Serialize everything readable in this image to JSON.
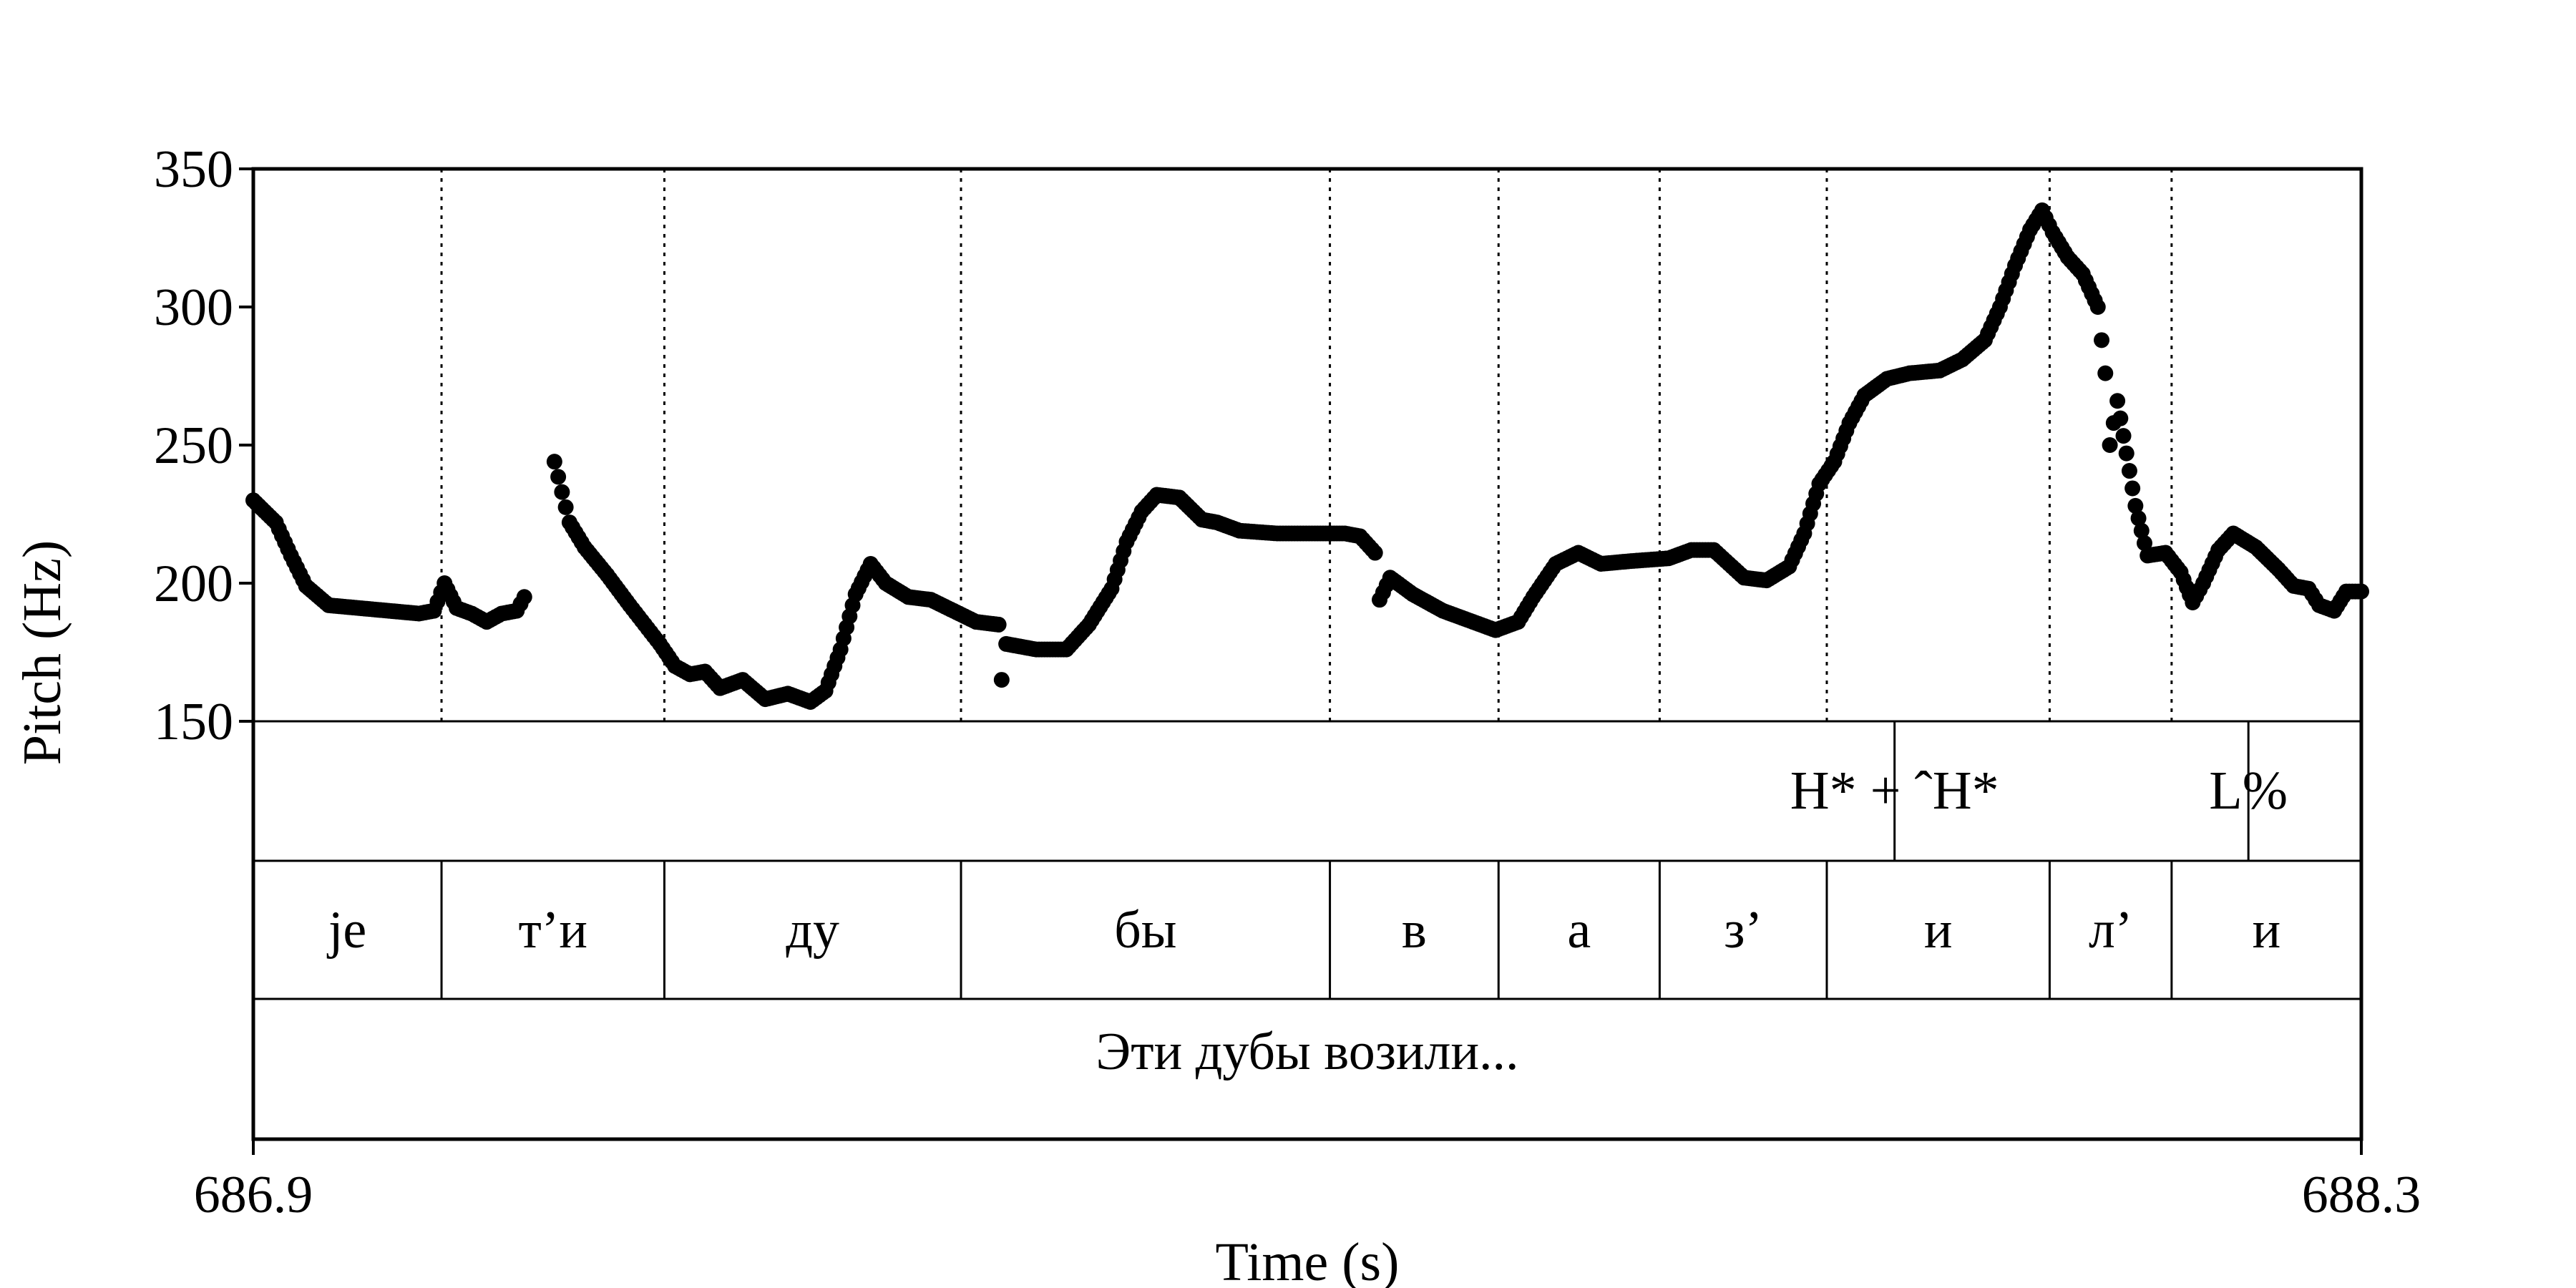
{
  "chart_data": {
    "type": "scatter",
    "xlabel": "Time (s)",
    "ylabel": "Pitch (Hz)",
    "xlim": [
      686.9,
      688.3
    ],
    "ylim": [
      150,
      350
    ],
    "x_tick_labels": [
      "686.9",
      "688.3"
    ],
    "y_tick_labels": [
      "150",
      "200",
      "250",
      "300",
      "350"
    ],
    "yticks": [
      150,
      200,
      250,
      300,
      350
    ],
    "grid": false,
    "point_color": "#000000",
    "pitch_contour": [
      {
        "x": 686.9,
        "y": 230
      },
      {
        "x": 686.915,
        "y": 222
      },
      {
        "x": 686.925,
        "y": 210
      },
      {
        "x": 686.935,
        "y": 199
      },
      {
        "x": 686.95,
        "y": 192
      },
      {
        "x": 686.97,
        "y": 191
      },
      {
        "x": 686.99,
        "y": 190
      },
      {
        "x": 687.01,
        "y": 189
      },
      {
        "x": 687.02,
        "y": 190
      },
      {
        "x": 687.027,
        "y": 200
      },
      {
        "x": 687.035,
        "y": 191
      },
      {
        "x": 687.045,
        "y": 189
      },
      {
        "x": 687.055,
        "y": 186
      },
      {
        "x": 687.065,
        "y": 189
      },
      {
        "x": 687.075,
        "y": 190
      },
      {
        "x": 687.08,
        "y": 195
      },
      {
        "x": 687.1,
        "y": 244
      },
      {
        "x": 687.105,
        "y": 233
      },
      {
        "x": 687.11,
        "y": 222
      },
      {
        "x": 687.12,
        "y": 213
      },
      {
        "x": 687.135,
        "y": 203
      },
      {
        "x": 687.15,
        "y": 192
      },
      {
        "x": 687.16,
        "y": 185
      },
      {
        "x": 687.17,
        "y": 178
      },
      {
        "x": 687.18,
        "y": 170
      },
      {
        "x": 687.19,
        "y": 167
      },
      {
        "x": 687.2,
        "y": 168
      },
      {
        "x": 687.21,
        "y": 162
      },
      {
        "x": 687.225,
        "y": 165
      },
      {
        "x": 687.24,
        "y": 158
      },
      {
        "x": 687.255,
        "y": 160
      },
      {
        "x": 687.27,
        "y": 157
      },
      {
        "x": 687.28,
        "y": 161
      },
      {
        "x": 687.29,
        "y": 176
      },
      {
        "x": 687.3,
        "y": 196
      },
      {
        "x": 687.31,
        "y": 207
      },
      {
        "x": 687.32,
        "y": 200
      },
      {
        "x": 687.335,
        "y": 195
      },
      {
        "x": 687.35,
        "y": 194
      },
      {
        "x": 687.365,
        "y": 190
      },
      {
        "x": 687.38,
        "y": 186
      },
      {
        "x": 687.395,
        "y": 185
      },
      {
        "x": 687.397,
        "y": 165
      },
      {
        "x": 687.4,
        "y": 178
      },
      {
        "x": 687.42,
        "y": 176
      },
      {
        "x": 687.44,
        "y": 176
      },
      {
        "x": 687.455,
        "y": 185
      },
      {
        "x": 687.47,
        "y": 198
      },
      {
        "x": 687.48,
        "y": 215
      },
      {
        "x": 687.49,
        "y": 226
      },
      {
        "x": 687.5,
        "y": 232
      },
      {
        "x": 687.515,
        "y": 231
      },
      {
        "x": 687.53,
        "y": 223
      },
      {
        "x": 687.54,
        "y": 222
      },
      {
        "x": 687.555,
        "y": 219
      },
      {
        "x": 687.58,
        "y": 218
      },
      {
        "x": 687.605,
        "y": 218
      },
      {
        "x": 687.625,
        "y": 218
      },
      {
        "x": 687.635,
        "y": 217
      },
      {
        "x": 687.645,
        "y": 211
      },
      {
        "x": 687.648,
        "y": 194
      },
      {
        "x": 687.655,
        "y": 202
      },
      {
        "x": 687.67,
        "y": 196
      },
      {
        "x": 687.69,
        "y": 190
      },
      {
        "x": 687.71,
        "y": 186
      },
      {
        "x": 687.725,
        "y": 183
      },
      {
        "x": 687.74,
        "y": 186
      },
      {
        "x": 687.75,
        "y": 195
      },
      {
        "x": 687.765,
        "y": 207
      },
      {
        "x": 687.78,
        "y": 211
      },
      {
        "x": 687.795,
        "y": 207
      },
      {
        "x": 687.815,
        "y": 208
      },
      {
        "x": 687.84,
        "y": 209
      },
      {
        "x": 687.855,
        "y": 212
      },
      {
        "x": 687.87,
        "y": 212
      },
      {
        "x": 687.88,
        "y": 207
      },
      {
        "x": 687.89,
        "y": 202
      },
      {
        "x": 687.905,
        "y": 201
      },
      {
        "x": 687.92,
        "y": 206
      },
      {
        "x": 687.93,
        "y": 218
      },
      {
        "x": 687.94,
        "y": 236
      },
      {
        "x": 687.95,
        "y": 244
      },
      {
        "x": 687.96,
        "y": 258
      },
      {
        "x": 687.97,
        "y": 268
      },
      {
        "x": 687.985,
        "y": 274
      },
      {
        "x": 688.0,
        "y": 276
      },
      {
        "x": 688.02,
        "y": 277
      },
      {
        "x": 688.035,
        "y": 281
      },
      {
        "x": 688.05,
        "y": 288
      },
      {
        "x": 688.06,
        "y": 300
      },
      {
        "x": 688.07,
        "y": 315
      },
      {
        "x": 688.08,
        "y": 328
      },
      {
        "x": 688.088,
        "y": 335
      },
      {
        "x": 688.095,
        "y": 327
      },
      {
        "x": 688.105,
        "y": 318
      },
      {
        "x": 688.115,
        "y": 312
      },
      {
        "x": 688.125,
        "y": 300
      },
      {
        "x": 688.13,
        "y": 276
      },
      {
        "x": 688.133,
        "y": 250
      },
      {
        "x": 688.138,
        "y": 266
      },
      {
        "x": 688.15,
        "y": 228
      },
      {
        "x": 688.158,
        "y": 210
      },
      {
        "x": 688.17,
        "y": 211
      },
      {
        "x": 688.18,
        "y": 204
      },
      {
        "x": 688.188,
        "y": 193
      },
      {
        "x": 688.195,
        "y": 200
      },
      {
        "x": 688.205,
        "y": 212
      },
      {
        "x": 688.215,
        "y": 218
      },
      {
        "x": 688.23,
        "y": 213
      },
      {
        "x": 688.245,
        "y": 205
      },
      {
        "x": 688.255,
        "y": 199
      },
      {
        "x": 688.265,
        "y": 198
      },
      {
        "x": 688.272,
        "y": 192
      },
      {
        "x": 688.282,
        "y": 190
      },
      {
        "x": 688.29,
        "y": 197
      },
      {
        "x": 688.3,
        "y": 197
      }
    ],
    "pitch_gaps_after_x": [
      687.08
    ],
    "tone_tier": {
      "labels": [
        {
          "text": "H* + ˆH*",
          "boundary_time": 687.99
        },
        {
          "text": "L%",
          "boundary_time": 688.225
        }
      ]
    },
    "segment_tier": {
      "boundaries": [
        686.9,
        687.025,
        687.173,
        687.37,
        687.615,
        687.727,
        687.834,
        687.945,
        688.093,
        688.174,
        688.3
      ],
      "labels": [
        "je",
        "т’и",
        "ду",
        "бы",
        "в",
        "а",
        "з’",
        "и",
        "л’",
        "и"
      ]
    },
    "utterance_tier": {
      "text": "Эти дубы возили..."
    }
  }
}
